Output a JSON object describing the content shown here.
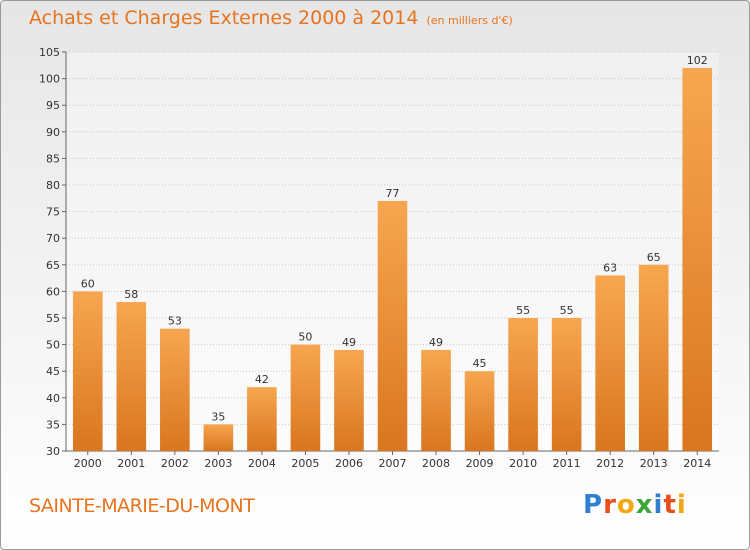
{
  "header": {
    "title": "Achats et Charges Externes 2000 à 2014",
    "subtitle": "(en milliers d'€)"
  },
  "footer": {
    "commune": "SAINTE-MARIE-DU-MONT",
    "logo_letters": [
      {
        "char": "P",
        "color": "#2f7fd0"
      },
      {
        "char": "r",
        "color": "#e94e1b"
      },
      {
        "char": "o",
        "color": "#f3a712"
      },
      {
        "char": "x",
        "color": "#3ea536"
      },
      {
        "char": "i",
        "color": "#2f7fd0"
      },
      {
        "char": "t",
        "color": "#e94e1b"
      },
      {
        "char": "i",
        "color": "#f3a712"
      }
    ]
  },
  "chart_data": {
    "type": "bar",
    "categories": [
      "2000",
      "2001",
      "2002",
      "2003",
      "2004",
      "2005",
      "2006",
      "2007",
      "2008",
      "2009",
      "2010",
      "2011",
      "2012",
      "2013",
      "2014"
    ],
    "values": [
      60,
      58,
      53,
      35,
      42,
      50,
      49,
      77,
      49,
      45,
      55,
      55,
      63,
      65,
      102
    ],
    "ylim": [
      30,
      105
    ],
    "yticks": [
      30,
      35,
      40,
      45,
      50,
      55,
      60,
      65,
      70,
      75,
      80,
      85,
      90,
      95,
      100,
      105
    ],
    "grid": true,
    "bar_color_light": "#f7a650",
    "bar_color_dark": "#d9761f",
    "text_color": "#333333",
    "accent_color": "#e8731e"
  }
}
